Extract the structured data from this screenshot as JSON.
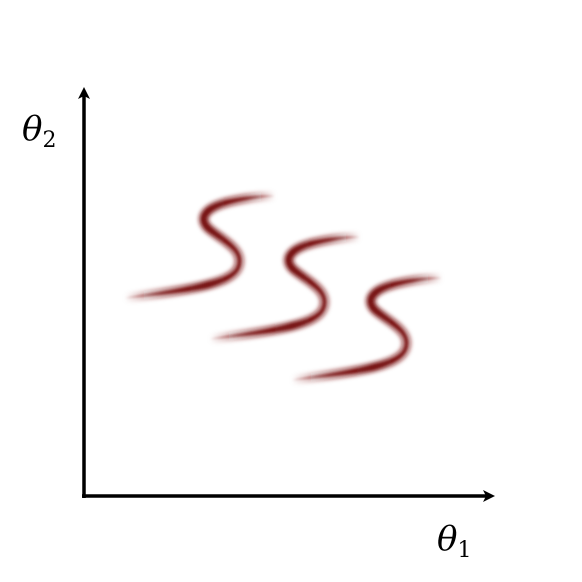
{
  "axes": {
    "x_label": "θ",
    "x_subscript": "1",
    "y_label": "θ",
    "y_subscript": "2",
    "color": "#000000"
  },
  "density": {
    "mode_count": 3,
    "color": "#7a1414"
  }
}
